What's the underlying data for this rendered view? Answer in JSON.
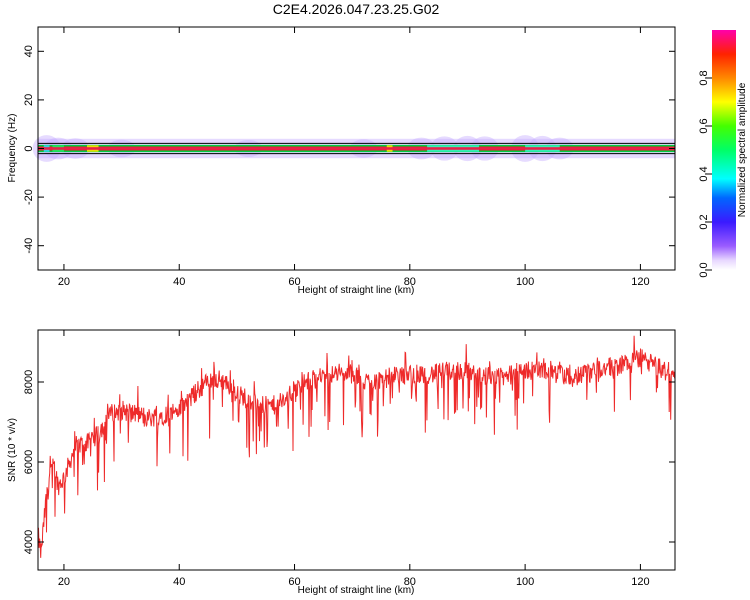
{
  "title": "C2E4.2026.047.23.25.G02",
  "colors": {
    "snr_line": "#ee2a2a",
    "axis": "#000000",
    "background": "#ffffff",
    "halo": "#b496ff"
  },
  "chart_data": [
    {
      "type": "heatmap",
      "xlabel": "Height of straight line (km)",
      "ylabel": "Frequency (Hz)",
      "xlim": [
        15.5,
        126
      ],
      "ylim": [
        -50,
        50
      ],
      "x_ticks": [
        20,
        40,
        60,
        80,
        100,
        120
      ],
      "y_ticks": [
        -40,
        -20,
        0,
        20,
        40
      ],
      "grid": false,
      "colorbar": {
        "label": "Normalized spectral amplitude",
        "ticks": [
          0.0,
          0.2,
          0.4,
          0.6,
          0.8
        ],
        "range": [
          0,
          1
        ],
        "colormap": "rainbow (purple-blue-cyan-green-yellow-red-magenta)"
      },
      "band": {
        "center_hz": 0,
        "core_halfwidth_hz": 1.5,
        "wide_halfwidth_hz": 4,
        "x_start_km": 15.5,
        "x_end_km": 126
      }
    },
    {
      "type": "line",
      "xlabel": "Height of straight line (km)",
      "ylabel": "SNR (10 * v/v)",
      "xlim": [
        15.5,
        126
      ],
      "ylim": [
        3300,
        9300
      ],
      "x_ticks": [
        20,
        40,
        60,
        80,
        100,
        120
      ],
      "y_ticks": [
        4000,
        6000,
        8000
      ],
      "grid": false,
      "series": [
        {
          "x_start": 15.5,
          "x_end": 126,
          "points": 1200,
          "trend_x": [
            15.5,
            16,
            17,
            18,
            19,
            20,
            22,
            25,
            28,
            30,
            35,
            40,
            42,
            44,
            46,
            48,
            50,
            52,
            54,
            56,
            58,
            60,
            62,
            64,
            66,
            70,
            72,
            76,
            80,
            84,
            88,
            92,
            96,
            100,
            104,
            108,
            112,
            116,
            120,
            124,
            126
          ],
          "trend_y": [
            4200,
            3700,
            5200,
            6200,
            5400,
            5600,
            6400,
            6500,
            7200,
            7300,
            7100,
            7300,
            7600,
            7900,
            8100,
            8000,
            7700,
            7600,
            7400,
            7400,
            7500,
            7800,
            8000,
            8100,
            8200,
            8200,
            8000,
            8100,
            8200,
            8200,
            8300,
            8200,
            8100,
            8300,
            8300,
            8100,
            8300,
            8400,
            8600,
            8300,
            8100
          ]
        }
      ]
    }
  ]
}
